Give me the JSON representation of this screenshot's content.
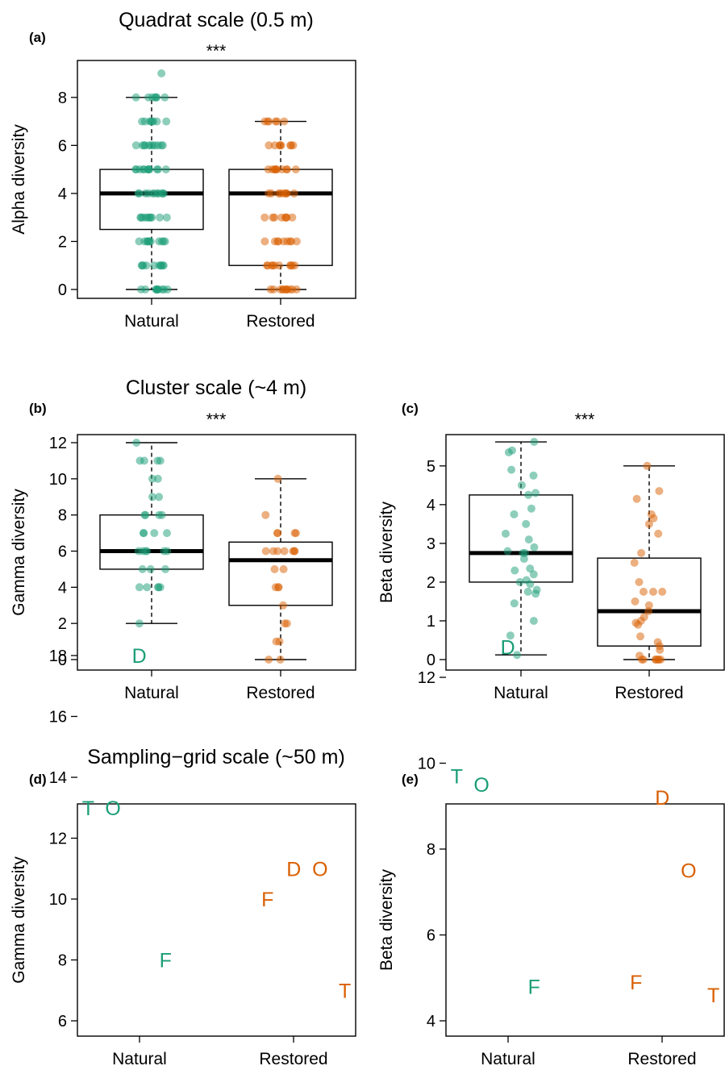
{
  "colors": {
    "natural": "#1b9e77",
    "restored": "#d95f02"
  },
  "sections": [
    {
      "id": "quadrat",
      "title": "Quadrat scale (0.5 m)"
    },
    {
      "id": "cluster",
      "title": "Cluster scale (~4 m)"
    },
    {
      "id": "grid",
      "title": "Sampling−grid scale (~50 m)"
    }
  ],
  "chart_data": [
    {
      "panel": "(a)",
      "type": "box",
      "significance": "***",
      "ylabel": "Alpha diversity",
      "categories": [
        "Natural",
        "Restored"
      ],
      "ylim": [
        0,
        9
      ],
      "yticks": [
        0,
        2,
        4,
        6,
        8
      ],
      "boxes": [
        {
          "name": "Natural",
          "min": 0,
          "q1": 2.5,
          "median": 4,
          "q3": 5,
          "max": 8
        },
        {
          "name": "Restored",
          "min": 0,
          "q1": 1,
          "median": 4,
          "q3": 5,
          "max": 7
        }
      ],
      "points": [
        {
          "group": "Natural",
          "values": [
            0,
            0,
            0,
            0,
            0,
            0,
            0,
            0,
            0,
            0,
            1,
            1,
            1,
            1,
            1,
            1,
            1,
            1,
            1,
            1,
            2,
            2,
            2,
            2,
            2,
            2,
            2,
            2,
            2,
            2,
            2,
            3,
            3,
            3,
            3,
            3,
            3,
            3,
            3,
            3,
            3,
            4,
            4,
            4,
            4,
            4,
            4,
            4,
            4,
            4,
            4,
            4,
            5,
            5,
            5,
            5,
            5,
            5,
            5,
            5,
            5,
            5,
            5,
            5,
            6,
            6,
            6,
            6,
            6,
            6,
            6,
            6,
            6,
            6,
            6,
            7,
            7,
            7,
            7,
            7,
            7,
            7,
            7,
            8,
            8,
            8,
            8,
            8,
            8,
            8,
            9
          ]
        },
        {
          "group": "Restored",
          "values": [
            0,
            0,
            0,
            0,
            0,
            0,
            0,
            0,
            0,
            0,
            0,
            1,
            1,
            1,
            1,
            1,
            1,
            1,
            1,
            1,
            1,
            2,
            2,
            2,
            2,
            2,
            2,
            2,
            2,
            2,
            3,
            3,
            3,
            3,
            3,
            3,
            3,
            3,
            4,
            4,
            4,
            4,
            4,
            4,
            4,
            4,
            4,
            5,
            5,
            5,
            5,
            5,
            5,
            5,
            5,
            5,
            5,
            6,
            6,
            6,
            6,
            6,
            6,
            6,
            6,
            7,
            7,
            7,
            7,
            7,
            7
          ]
        }
      ]
    },
    {
      "panel": "(b)",
      "type": "box",
      "significance": "***",
      "ylabel": "Gamma diversity",
      "categories": [
        "Natural",
        "Restored"
      ],
      "ylim": [
        0,
        12
      ],
      "yticks": [
        0,
        2,
        4,
        6,
        8,
        10,
        12
      ],
      "boxes": [
        {
          "name": "Natural",
          "min": 2,
          "q1": 5,
          "median": 6,
          "q3": 8,
          "max": 12
        },
        {
          "name": "Restored",
          "min": 0,
          "q1": 3,
          "median": 5.5,
          "q3": 6.5,
          "max": 10
        }
      ],
      "points": [
        {
          "group": "Natural",
          "values": [
            2,
            4,
            4,
            4,
            4,
            4,
            5,
            5,
            5,
            6,
            6,
            6,
            6,
            6,
            6,
            7,
            7,
            7,
            7,
            8,
            8,
            8,
            8,
            9,
            9,
            10,
            10,
            11,
            11,
            11,
            11,
            12
          ]
        },
        {
          "group": "Restored",
          "values": [
            0,
            0,
            1,
            1,
            2,
            2,
            3,
            4,
            4,
            4,
            5,
            5,
            6,
            6,
            6,
            6,
            6,
            6,
            6,
            7,
            7,
            7,
            7,
            8,
            10
          ]
        }
      ]
    },
    {
      "panel": "(c)",
      "type": "box",
      "significance": "***",
      "ylabel": "Beta diversity",
      "categories": [
        "Natural",
        "Restored"
      ],
      "ylim": [
        0,
        5.6
      ],
      "yticks": [
        0,
        1,
        2,
        3,
        4,
        5
      ],
      "boxes": [
        {
          "name": "Natural",
          "min": 0.12,
          "q1": 2.0,
          "median": 2.75,
          "q3": 4.25,
          "max": 5.62
        },
        {
          "name": "Restored",
          "min": 0,
          "q1": 0.35,
          "median": 1.25,
          "q3": 2.62,
          "max": 5.0
        }
      ],
      "points": [
        {
          "group": "Natural",
          "values": [
            0.12,
            0.62,
            1.0,
            1.45,
            1.7,
            1.75,
            1.8,
            1.95,
            2.0,
            2.05,
            2.2,
            2.3,
            2.35,
            2.6,
            2.75,
            2.75,
            2.8,
            2.9,
            3.1,
            3.25,
            3.5,
            3.75,
            3.9,
            4.25,
            4.3,
            4.5,
            4.75,
            4.9,
            5.35,
            5.4,
            5.62
          ]
        },
        {
          "group": "Restored",
          "values": [
            0,
            0,
            0,
            0,
            0,
            0,
            0,
            0.1,
            0.25,
            0.35,
            0.45,
            0.6,
            0.9,
            0.95,
            1.0,
            1.1,
            1.25,
            1.4,
            1.5,
            1.75,
            1.75,
            1.75,
            2.0,
            2.5,
            2.75,
            3.25,
            3.5,
            3.65,
            3.75,
            4.15,
            4.35,
            5.0
          ]
        }
      ]
    },
    {
      "panel": "(d)",
      "type": "scatter",
      "ylabel": "Gamma diversity",
      "categories": [
        "Natural",
        "Restored"
      ],
      "xlim": [
        0.6,
        2.4
      ],
      "ylim": [
        5.5,
        18.5
      ],
      "yticks": [
        6,
        8,
        10,
        12,
        14,
        16,
        18
      ],
      "points": [
        {
          "label": "T",
          "group": "Natural",
          "x": 0.67,
          "y": 13
        },
        {
          "label": "O",
          "group": "Natural",
          "x": 0.83,
          "y": 13
        },
        {
          "label": "D",
          "group": "Natural",
          "x": 1.0,
          "y": 18
        },
        {
          "label": "F",
          "group": "Natural",
          "x": 1.17,
          "y": 8
        },
        {
          "label": "F",
          "group": "Restored",
          "x": 1.83,
          "y": 10
        },
        {
          "label": "D",
          "group": "Restored",
          "x": 2.0,
          "y": 11
        },
        {
          "label": "O",
          "group": "Restored",
          "x": 2.17,
          "y": 11
        },
        {
          "label": "T",
          "group": "Restored",
          "x": 2.33,
          "y": 7
        }
      ]
    },
    {
      "panel": "(e)",
      "type": "scatter",
      "ylabel": "Beta diversity",
      "categories": [
        "Natural",
        "Restored"
      ],
      "xlim": [
        0.6,
        2.4
      ],
      "ylim": [
        3.6,
        13.4
      ],
      "yticks": [
        4,
        6,
        8,
        10,
        12
      ],
      "points": [
        {
          "label": "T",
          "group": "Natural",
          "x": 0.67,
          "y": 9.7
        },
        {
          "label": "O",
          "group": "Natural",
          "x": 0.83,
          "y": 9.5
        },
        {
          "label": "D",
          "group": "Natural",
          "x": 1.0,
          "y": 12.7
        },
        {
          "label": "F",
          "group": "Natural",
          "x": 1.17,
          "y": 4.8
        },
        {
          "label": "F",
          "group": "Restored",
          "x": 1.83,
          "y": 4.9
        },
        {
          "label": "D",
          "group": "Restored",
          "x": 2.0,
          "y": 9.2
        },
        {
          "label": "O",
          "group": "Restored",
          "x": 2.17,
          "y": 7.5
        },
        {
          "label": "T",
          "group": "Restored",
          "x": 2.33,
          "y": 4.6
        }
      ]
    }
  ]
}
